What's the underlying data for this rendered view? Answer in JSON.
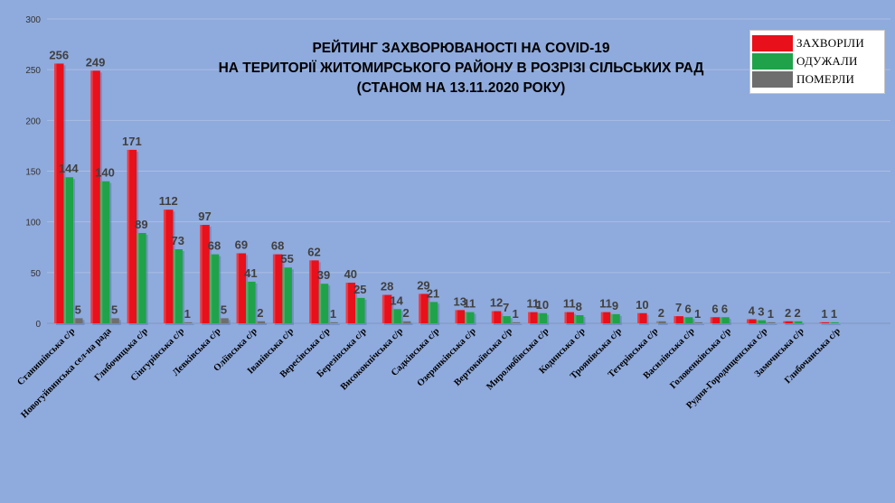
{
  "colors": {
    "background": "#8faadc",
    "grid": "#a9bde3",
    "infected": "#e8101a",
    "recovered": "#1fa24a",
    "died": "#6e6e6e",
    "label_text": "#404040"
  },
  "title": {
    "line1": "РЕЙТИНГ ЗАХВОРЮВАНОСТІ НА COVID-19",
    "line2": "НА ТЕРИТОРІЇ ЖИТОМИРСЬКОГО РАЙОНУ В РОЗРІЗІ СІЛЬСЬКИХ РАД",
    "line3": "(СТАНОМ НА 13.11.2020 РОКУ)"
  },
  "legend": [
    {
      "label": "ЗАХВОРІЛИ",
      "color": "#e8101a"
    },
    {
      "label": "ОДУЖАЛИ",
      "color": "#1fa24a"
    },
    {
      "label": "ПОМЕРЛИ",
      "color": "#6e6e6e"
    }
  ],
  "chart_data": {
    "type": "bar",
    "title": "РЕЙТИНГ ЗАХВОРЮВАНОСТІ НА COVID-19 НА ТЕРИТОРІЇ ЖИТОМИРСЬКОГО РАЙОНУ В РОЗРІЗІ СІЛЬСЬКИХ РАД (СТАНОМ НА 13.11.2020 РОКУ)",
    "xlabel": "",
    "ylabel": "",
    "ylim": [
      0,
      300
    ],
    "yticks": [
      0,
      50,
      100,
      150,
      200,
      250,
      300
    ],
    "grid": true,
    "legend_position": "top-right",
    "categories": [
      "Станишівська с/р",
      "Новогуйвинська сел-на рада",
      "Глибочицька с/р",
      "Сінгурівська с/р",
      "Левківська с/р",
      "Оліївська с/р",
      "Іванівська с/р",
      "Вересівська с/р",
      "Березівська с/р",
      "Висококпічська с/р",
      "Садківська с/р",
      "Озерянківська с/р",
      "Вертокиївська с/р",
      "Миролюбівська с/р",
      "Кодинська с/р",
      "Троянівська с/р",
      "Тетерівська с/р",
      "Василівська с/р",
      "Головенківська с/р",
      "Рудня-Городищенська с/р",
      "Замочиська с/р",
      "Глибочанська с/р"
    ],
    "series": [
      {
        "name": "ЗАХВОРІЛИ",
        "values": [
          256,
          249,
          171,
          112,
          97,
          69,
          68,
          62,
          40,
          28,
          29,
          13,
          12,
          11,
          11,
          11,
          10,
          7,
          6,
          4,
          2,
          1
        ]
      },
      {
        "name": "ОДУЖАЛИ",
        "values": [
          144,
          140,
          89,
          73,
          68,
          41,
          55,
          39,
          25,
          14,
          21,
          11,
          7,
          10,
          8,
          9,
          null,
          6,
          6,
          3,
          2,
          1
        ]
      },
      {
        "name": "ПОМЕРЛИ",
        "values": [
          5,
          5,
          null,
          1,
          5,
          2,
          null,
          1,
          null,
          2,
          null,
          null,
          1,
          null,
          null,
          null,
          2,
          1,
          null,
          1,
          null,
          null
        ]
      }
    ]
  }
}
